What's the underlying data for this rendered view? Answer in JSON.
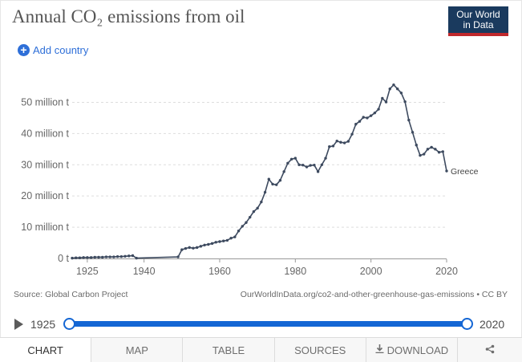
{
  "header": {
    "title": "Annual CO₂ emissions from oil",
    "logo_line1": "Our World",
    "logo_line2": "in Data"
  },
  "controls": {
    "add_country_label": "Add country",
    "add_icon": "plus-circle-icon"
  },
  "footer": {
    "source": "Source: Global Carbon Project",
    "credit": "OurWorldInData.org/co2-and-other-greenhouse-gas-emissions • CC BY"
  },
  "timeline": {
    "start_year": "1925",
    "end_year": "2020",
    "range_min": 1921,
    "range_max": 2020,
    "play_icon": "play-icon"
  },
  "tabs": [
    {
      "label": "CHART"
    },
    {
      "label": "MAP"
    },
    {
      "label": "TABLE"
    },
    {
      "label": "SOURCES"
    },
    {
      "label": "DOWNLOAD",
      "icon": "download-icon"
    },
    {
      "label": "",
      "icon": "share-icon"
    }
  ],
  "colors": {
    "line": "#3d4a5f",
    "accent": "#1466d4",
    "logo_bg": "#1a3a5e",
    "logo_bar": "#c0282c"
  },
  "chart_data": {
    "type": "line",
    "title": "Annual CO₂ emissions from oil",
    "xlabel": "",
    "ylabel": "",
    "xlim": [
      1921,
      2020
    ],
    "ylim": [
      0,
      55
    ],
    "x_ticks": [
      1925,
      1940,
      1960,
      1980,
      2000,
      2020
    ],
    "y_ticks": [
      {
        "value": 0,
        "label": "0 t"
      },
      {
        "value": 10,
        "label": "10 million t"
      },
      {
        "value": 20,
        "label": "20 million t"
      },
      {
        "value": 30,
        "label": "30 million t"
      },
      {
        "value": 40,
        "label": "40 million t"
      },
      {
        "value": 50,
        "label": "50 million t"
      }
    ],
    "series": [
      {
        "name": "Greece",
        "x": [
          1921,
          1922,
          1923,
          1924,
          1925,
          1926,
          1927,
          1928,
          1929,
          1930,
          1931,
          1932,
          1933,
          1934,
          1935,
          1936,
          1937,
          1938,
          1949,
          1950,
          1951,
          1952,
          1953,
          1954,
          1955,
          1956,
          1957,
          1958,
          1959,
          1960,
          1961,
          1962,
          1963,
          1964,
          1965,
          1966,
          1967,
          1968,
          1969,
          1970,
          1971,
          1972,
          1973,
          1974,
          1975,
          1976,
          1977,
          1978,
          1979,
          1980,
          1981,
          1982,
          1983,
          1984,
          1985,
          1986,
          1987,
          1988,
          1989,
          1990,
          1991,
          1992,
          1993,
          1994,
          1995,
          1996,
          1997,
          1998,
          1999,
          2000,
          2001,
          2002,
          2003,
          2004,
          2005,
          2006,
          2007,
          2008,
          2009,
          2010,
          2011,
          2012,
          2013,
          2014,
          2015,
          2016,
          2017,
          2018,
          2019,
          2020
        ],
        "values": [
          0.1,
          0.2,
          0.2,
          0.3,
          0.3,
          0.3,
          0.4,
          0.4,
          0.4,
          0.5,
          0.5,
          0.5,
          0.6,
          0.6,
          0.7,
          0.8,
          0.9,
          0.1,
          0.5,
          2.8,
          3.2,
          3.5,
          3.3,
          3.5,
          3.9,
          4.3,
          4.5,
          4.8,
          5.2,
          5.4,
          5.6,
          5.8,
          6.5,
          6.9,
          8.8,
          10.3,
          11.5,
          13.2,
          15.0,
          16.1,
          18.1,
          21.2,
          25.4,
          23.8,
          23.6,
          25.0,
          27.8,
          30.5,
          31.8,
          32.1,
          30.0,
          29.9,
          29.3,
          29.8,
          29.9,
          27.8,
          30.0,
          32.1,
          35.8,
          36.0,
          37.6,
          37.2,
          37.0,
          37.5,
          39.8,
          43.0,
          43.9,
          45.2,
          45.0,
          45.7,
          46.6,
          47.8,
          51.3,
          50.1,
          54.3,
          55.6,
          54.3,
          53.0,
          50.2,
          44.3,
          40.4,
          36.3,
          33.0,
          33.4,
          35.0,
          35.6,
          35.0,
          34.0,
          34.2,
          28.0
        ]
      }
    ],
    "series_label": "Greece",
    "grid": "horizontal dashed"
  }
}
